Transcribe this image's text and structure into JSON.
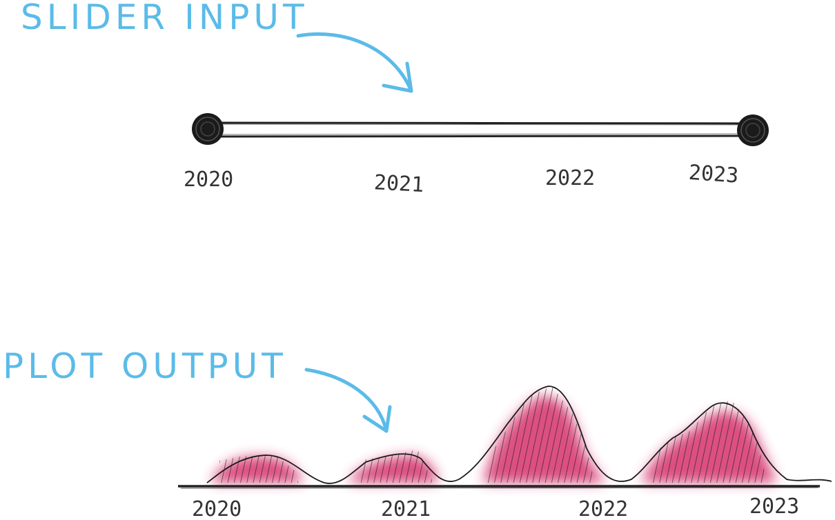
{
  "slider_section": {
    "title": "SLIDER INPUT",
    "range": {
      "min": 2020,
      "max": 2023
    },
    "selected": {
      "start": 2020,
      "end": 2023
    },
    "tick_labels": [
      "2020",
      "2021",
      "2022",
      "2023"
    ]
  },
  "plot_section": {
    "title": "PLOT OUTPUT",
    "tick_labels": [
      "2020",
      "2021",
      "2022",
      "2023"
    ]
  },
  "colors": {
    "annotation": "#5bbbe8",
    "ink": "#1a1a1a",
    "fill": "#d6336c"
  }
}
